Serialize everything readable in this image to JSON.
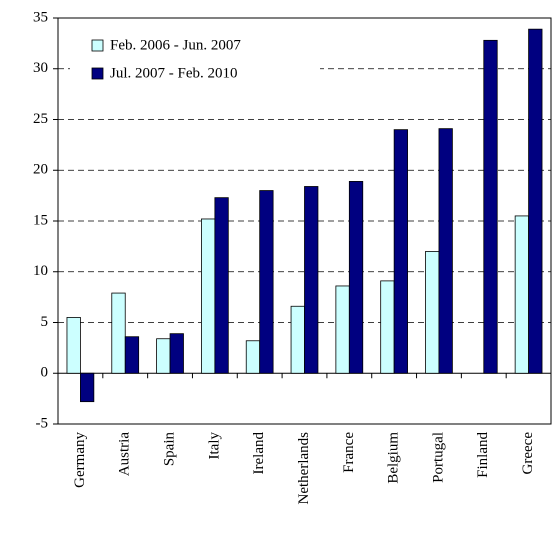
{
  "chart_data": {
    "type": "bar",
    "categories": [
      "Germany",
      "Austria",
      "Spain",
      "Italy",
      "Ireland",
      "Netherlands",
      "France",
      "Belgium",
      "Portugal",
      "Finland",
      "Greece"
    ],
    "series": [
      {
        "name": "Feb. 2006 - Jun. 2007",
        "color": "#ccffff",
        "values": [
          5.5,
          7.9,
          3.4,
          15.2,
          3.2,
          6.6,
          8.6,
          9.1,
          12.0,
          null,
          15.5
        ]
      },
      {
        "name": "Jul. 2007 - Feb. 2010",
        "color": "#000080",
        "values": [
          -2.8,
          3.6,
          3.9,
          17.3,
          18.0,
          18.4,
          18.9,
          24.0,
          24.1,
          32.8,
          33.9
        ]
      }
    ],
    "ylim": [
      -5,
      35
    ],
    "yticks": [
      -5,
      0,
      5,
      10,
      15,
      20,
      25,
      30,
      35
    ],
    "grid": true,
    "legend": "upper-left"
  }
}
